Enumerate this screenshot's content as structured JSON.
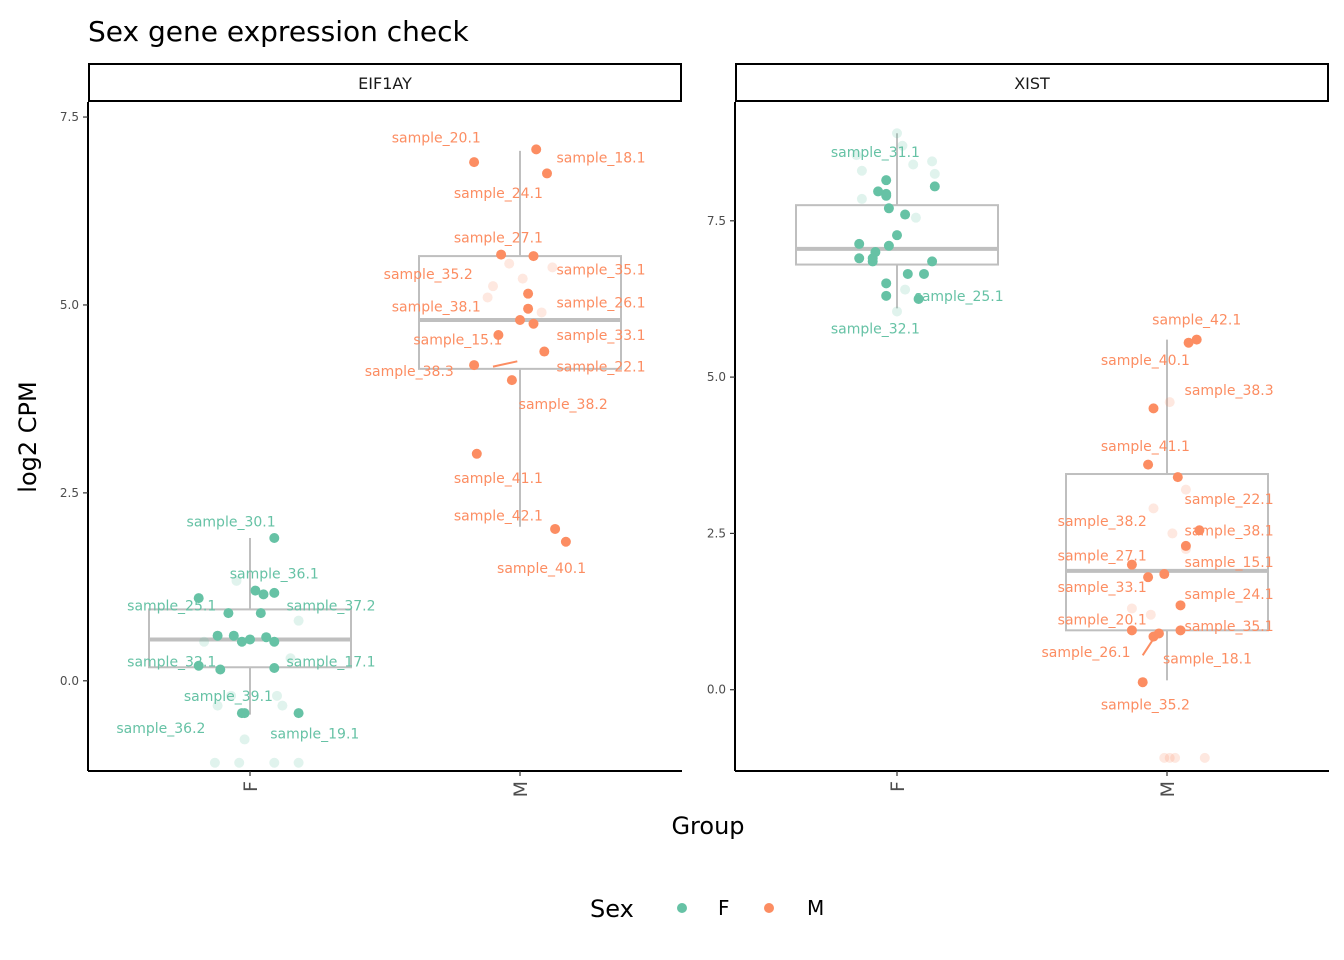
{
  "chart_data": {
    "type": "box-jitter",
    "title": "Sex gene expression check",
    "xlabel": "Group",
    "ylabel": "log2 CPM",
    "categories": [
      "F",
      "M"
    ],
    "legend": {
      "title": "Sex",
      "position": "bottom",
      "entries": [
        "F",
        "M"
      ]
    },
    "colors": {
      "F": "#66c2a5",
      "M": "#fc8d62",
      "box": "#bfbfbf"
    },
    "panels": [
      {
        "name": "EIF1AY",
        "ylim": [
          -1.2,
          7.7
        ],
        "yticks": [
          0.0,
          2.5,
          5.0,
          7.5
        ],
        "ytick_labels": [
          "0.0",
          "2.5",
          "5.0",
          "7.5"
        ],
        "box": {
          "F": {
            "q1": 0.18,
            "median": 0.55,
            "q3": 0.95,
            "low": -0.45,
            "high": 1.9
          },
          "M": {
            "q1": 4.15,
            "median": 4.8,
            "q3": 5.65,
            "low": 2.05,
            "high": 7.05
          }
        },
        "points": {
          "F": [
            {
              "x": 0.09,
              "y": 1.9,
              "a": 1
            },
            {
              "x": 0.02,
              "y": 1.2,
              "a": 1
            },
            {
              "x": 0.05,
              "y": 1.15,
              "a": 1
            },
            {
              "x": 0.09,
              "y": 1.17,
              "a": 1
            },
            {
              "x": -0.19,
              "y": 1.1,
              "a": 1
            },
            {
              "x": -0.08,
              "y": 0.9,
              "a": 1
            },
            {
              "x": 0.04,
              "y": 0.9,
              "a": 1
            },
            {
              "x": -0.12,
              "y": 0.6,
              "a": 1
            },
            {
              "x": -0.06,
              "y": 0.6,
              "a": 1
            },
            {
              "x": -0.03,
              "y": 0.52,
              "a": 1
            },
            {
              "x": 0.0,
              "y": 0.55,
              "a": 1
            },
            {
              "x": 0.06,
              "y": 0.58,
              "a": 1
            },
            {
              "x": 0.09,
              "y": 0.52,
              "a": 1
            },
            {
              "x": -0.19,
              "y": 0.2,
              "a": 1
            },
            {
              "x": -0.11,
              "y": 0.15,
              "a": 1
            },
            {
              "x": 0.09,
              "y": 0.17,
              "a": 1
            },
            {
              "x": -0.03,
              "y": -0.43,
              "a": 1
            },
            {
              "x": -0.02,
              "y": -0.43,
              "a": 1
            },
            {
              "x": 0.18,
              "y": -0.43,
              "a": 1
            },
            {
              "x": -0.05,
              "y": 1.33,
              "a": 0.2
            },
            {
              "x": 0.18,
              "y": 0.8,
              "a": 0.2
            },
            {
              "x": -0.17,
              "y": 0.52,
              "a": 0.2
            },
            {
              "x": 0.15,
              "y": 0.3,
              "a": 0.2
            },
            {
              "x": -0.07,
              "y": -0.2,
              "a": 0.2
            },
            {
              "x": 0.1,
              "y": -0.2,
              "a": 0.2
            },
            {
              "x": -0.12,
              "y": -0.33,
              "a": 0.2
            },
            {
              "x": 0.12,
              "y": -0.33,
              "a": 0.2
            },
            {
              "x": -0.02,
              "y": -0.78,
              "a": 0.2
            },
            {
              "x": -0.13,
              "y": -1.09,
              "a": 0.2
            },
            {
              "x": -0.04,
              "y": -1.09,
              "a": 0.2
            },
            {
              "x": 0.09,
              "y": -1.09,
              "a": 0.2
            },
            {
              "x": 0.18,
              "y": -1.09,
              "a": 0.2
            }
          ],
          "M": [
            {
              "x": 0.06,
              "y": 7.07,
              "a": 1
            },
            {
              "x": -0.17,
              "y": 6.9,
              "a": 1
            },
            {
              "x": 0.1,
              "y": 6.75,
              "a": 1
            },
            {
              "x": -0.07,
              "y": 5.67,
              "a": 1
            },
            {
              "x": 0.05,
              "y": 5.65,
              "a": 1
            },
            {
              "x": 0.03,
              "y": 5.15,
              "a": 1
            },
            {
              "x": 0.03,
              "y": 4.95,
              "a": 1
            },
            {
              "x": 0.0,
              "y": 4.8,
              "a": 1
            },
            {
              "x": 0.05,
              "y": 4.75,
              "a": 1
            },
            {
              "x": -0.08,
              "y": 4.6,
              "a": 1
            },
            {
              "x": 0.09,
              "y": 4.38,
              "a": 1
            },
            {
              "x": -0.17,
              "y": 4.2,
              "a": 1
            },
            {
              "x": -0.03,
              "y": 4.0,
              "a": 1
            },
            {
              "x": -0.16,
              "y": 3.02,
              "a": 1
            },
            {
              "x": 0.13,
              "y": 2.02,
              "a": 1
            },
            {
              "x": 0.17,
              "y": 1.85,
              "a": 1
            },
            {
              "x": -0.04,
              "y": 5.55,
              "a": 0.2
            },
            {
              "x": 0.12,
              "y": 5.5,
              "a": 0.2
            },
            {
              "x": 0.01,
              "y": 5.35,
              "a": 0.2
            },
            {
              "x": -0.1,
              "y": 5.25,
              "a": 0.2
            },
            {
              "x": -0.12,
              "y": 5.1,
              "a": 0.2
            },
            {
              "x": 0.08,
              "y": 4.9,
              "a": 0.2
            }
          ]
        },
        "labels": [
          {
            "text": "sample_30.1",
            "x": -0.07,
            "y": 2.12,
            "g": "F"
          },
          {
            "text": "sample_36.1",
            "x": 0.09,
            "y": 1.43,
            "g": "F"
          },
          {
            "text": "sample_25.1",
            "x": -0.29,
            "y": 1.0,
            "g": "F"
          },
          {
            "text": "sample_37.2",
            "x": 0.3,
            "y": 1.0,
            "g": "F"
          },
          {
            "text": "sample_32.1",
            "x": -0.29,
            "y": 0.26,
            "g": "F"
          },
          {
            "text": "sample_17.1",
            "x": 0.3,
            "y": 0.26,
            "g": "F"
          },
          {
            "text": "sample_39.1",
            "x": -0.08,
            "y": -0.2,
            "g": "F"
          },
          {
            "text": "sample_36.2",
            "x": -0.33,
            "y": -0.63,
            "g": "F"
          },
          {
            "text": "sample_19.1",
            "x": 0.24,
            "y": -0.7,
            "g": "F"
          },
          {
            "text": "sample_20.1",
            "x": -0.31,
            "y": 7.23,
            "g": "M"
          },
          {
            "text": "sample_18.1",
            "x": 0.3,
            "y": 6.96,
            "g": "M"
          },
          {
            "text": "sample_24.1",
            "x": -0.08,
            "y": 6.49,
            "g": "M"
          },
          {
            "text": "sample_27.1",
            "x": -0.08,
            "y": 5.9,
            "g": "M"
          },
          {
            "text": "sample_35.1",
            "x": 0.3,
            "y": 5.47,
            "g": "M"
          },
          {
            "text": "sample_35.2",
            "x": -0.34,
            "y": 5.41,
            "g": "M"
          },
          {
            "text": "sample_26.1",
            "x": 0.3,
            "y": 5.03,
            "g": "M"
          },
          {
            "text": "sample_38.1",
            "x": -0.31,
            "y": 4.98,
            "g": "M"
          },
          {
            "text": "sample_33.1",
            "x": 0.3,
            "y": 4.6,
            "g": "M"
          },
          {
            "text": "sample_15.1",
            "x": -0.23,
            "y": 4.54,
            "g": "M"
          },
          {
            "text": "sample_22.1",
            "x": 0.3,
            "y": 4.18,
            "g": "M"
          },
          {
            "text": "sample_38.3",
            "x": -0.41,
            "y": 4.12,
            "g": "M"
          },
          {
            "text": "sample_38.2",
            "x": 0.16,
            "y": 3.68,
            "g": "M"
          },
          {
            "text": "sample_41.1",
            "x": -0.08,
            "y": 2.7,
            "g": "M"
          },
          {
            "text": "sample_42.1",
            "x": -0.08,
            "y": 2.2,
            "g": "M"
          },
          {
            "text": "sample_40.1",
            "x": 0.08,
            "y": 1.5,
            "g": "M"
          }
        ],
        "segments": [
          {
            "x1": -0.1,
            "y1": 4.18,
            "x2": -0.01,
            "y2": 4.25,
            "g": "M"
          }
        ]
      },
      {
        "name": "XIST",
        "ylim": [
          -1.3,
          9.4
        ],
        "yticks": [
          0.0,
          2.5,
          5.0,
          7.5
        ],
        "ytick_labels": [
          "0.0",
          "2.5",
          "5.0",
          "7.5"
        ],
        "box": {
          "F": {
            "q1": 6.8,
            "median": 7.05,
            "q3": 7.75,
            "low": 6.1,
            "high": 8.9
          },
          "M": {
            "q1": 0.95,
            "median": 1.9,
            "q3": 3.45,
            "low": 0.15,
            "high": 5.6
          }
        },
        "points": {
          "F": [
            {
              "x": -0.04,
              "y": 8.15,
              "a": 1
            },
            {
              "x": -0.07,
              "y": 7.97,
              "a": 1
            },
            {
              "x": -0.04,
              "y": 7.93,
              "a": 1
            },
            {
              "x": 0.14,
              "y": 8.05,
              "a": 1
            },
            {
              "x": -0.04,
              "y": 7.9,
              "a": 1
            },
            {
              "x": -0.03,
              "y": 7.7,
              "a": 1
            },
            {
              "x": 0.03,
              "y": 7.6,
              "a": 1
            },
            {
              "x": 0.0,
              "y": 7.27,
              "a": 1
            },
            {
              "x": -0.14,
              "y": 7.13,
              "a": 1
            },
            {
              "x": -0.03,
              "y": 7.1,
              "a": 1
            },
            {
              "x": -0.08,
              "y": 7.0,
              "a": 1
            },
            {
              "x": -0.09,
              "y": 6.9,
              "a": 1
            },
            {
              "x": -0.14,
              "y": 6.9,
              "a": 1
            },
            {
              "x": -0.09,
              "y": 6.85,
              "a": 1
            },
            {
              "x": 0.13,
              "y": 6.85,
              "a": 1
            },
            {
              "x": 0.04,
              "y": 6.65,
              "a": 1
            },
            {
              "x": 0.1,
              "y": 6.65,
              "a": 1
            },
            {
              "x": -0.04,
              "y": 6.5,
              "a": 1
            },
            {
              "x": -0.04,
              "y": 6.3,
              "a": 1
            },
            {
              "x": 0.08,
              "y": 6.25,
              "a": 1
            },
            {
              "x": 0.0,
              "y": 8.9,
              "a": 0.2
            },
            {
              "x": 0.02,
              "y": 8.7,
              "a": 0.2
            },
            {
              "x": -0.15,
              "y": 8.55,
              "a": 0.2
            },
            {
              "x": 0.13,
              "y": 8.45,
              "a": 0.2
            },
            {
              "x": 0.06,
              "y": 8.4,
              "a": 0.2
            },
            {
              "x": -0.13,
              "y": 8.3,
              "a": 0.2
            },
            {
              "x": 0.14,
              "y": 8.25,
              "a": 0.2
            },
            {
              "x": -0.13,
              "y": 7.85,
              "a": 0.2
            },
            {
              "x": 0.07,
              "y": 7.55,
              "a": 0.2
            },
            {
              "x": 0.03,
              "y": 6.4,
              "a": 0.2
            },
            {
              "x": 0.0,
              "y": 6.05,
              "a": 0.2
            }
          ],
          "M": [
            {
              "x": 0.11,
              "y": 5.6,
              "a": 1
            },
            {
              "x": 0.08,
              "y": 5.55,
              "a": 1
            },
            {
              "x": -0.05,
              "y": 4.5,
              "a": 1
            },
            {
              "x": -0.07,
              "y": 3.6,
              "a": 1
            },
            {
              "x": 0.04,
              "y": 3.4,
              "a": 1
            },
            {
              "x": 0.12,
              "y": 2.55,
              "a": 1
            },
            {
              "x": 0.07,
              "y": 2.3,
              "a": 1
            },
            {
              "x": -0.13,
              "y": 2.0,
              "a": 1
            },
            {
              "x": -0.07,
              "y": 1.8,
              "a": 1
            },
            {
              "x": -0.01,
              "y": 1.85,
              "a": 1
            },
            {
              "x": 0.05,
              "y": 1.35,
              "a": 1
            },
            {
              "x": -0.13,
              "y": 0.95,
              "a": 1
            },
            {
              "x": -0.05,
              "y": 0.85,
              "a": 1
            },
            {
              "x": -0.03,
              "y": 0.9,
              "a": 1
            },
            {
              "x": 0.05,
              "y": 0.95,
              "a": 1
            },
            {
              "x": -0.09,
              "y": 0.12,
              "a": 1
            },
            {
              "x": 0.01,
              "y": 4.6,
              "a": 0.2
            },
            {
              "x": 0.07,
              "y": 3.2,
              "a": 0.2
            },
            {
              "x": -0.05,
              "y": 2.9,
              "a": 0.2
            },
            {
              "x": 0.02,
              "y": 2.5,
              "a": 0.2
            },
            {
              "x": 0.07,
              "y": 2.25,
              "a": 0.2
            },
            {
              "x": -0.13,
              "y": 1.3,
              "a": 0.2
            },
            {
              "x": -0.06,
              "y": 1.2,
              "a": 0.2
            },
            {
              "x": -0.01,
              "y": -1.09,
              "a": 0.2
            },
            {
              "x": 0.01,
              "y": -1.09,
              "a": 0.2
            },
            {
              "x": 0.03,
              "y": -1.09,
              "a": 0.2
            },
            {
              "x": 0.14,
              "y": -1.09,
              "a": 0.2
            }
          ]
        },
        "labels": [
          {
            "text": "sample_31.1",
            "x": -0.08,
            "y": 8.6,
            "g": "F"
          },
          {
            "text": "sample_25.1",
            "x": 0.23,
            "y": 6.3,
            "g": "F"
          },
          {
            "text": "sample_32.1",
            "x": -0.08,
            "y": 5.78,
            "g": "F"
          },
          {
            "text": "sample_42.1",
            "x": 0.11,
            "y": 5.92,
            "g": "M"
          },
          {
            "text": "sample_40.1",
            "x": -0.08,
            "y": 5.27,
            "g": "M"
          },
          {
            "text": "sample_38.3",
            "x": 0.23,
            "y": 4.79,
            "g": "M"
          },
          {
            "text": "sample_41.1",
            "x": -0.08,
            "y": 3.9,
            "g": "M"
          },
          {
            "text": "sample_22.1",
            "x": 0.23,
            "y": 3.05,
            "g": "M"
          },
          {
            "text": "sample_38.2",
            "x": -0.24,
            "y": 2.7,
            "g": "M"
          },
          {
            "text": "sample_38.1",
            "x": 0.23,
            "y": 2.55,
            "g": "M"
          },
          {
            "text": "sample_27.1",
            "x": -0.24,
            "y": 2.15,
            "g": "M"
          },
          {
            "text": "sample_15.1",
            "x": 0.23,
            "y": 2.04,
            "g": "M"
          },
          {
            "text": "sample_33.1",
            "x": -0.24,
            "y": 1.64,
            "g": "M"
          },
          {
            "text": "sample_24.1",
            "x": 0.23,
            "y": 1.53,
            "g": "M"
          },
          {
            "text": "sample_20.1",
            "x": -0.24,
            "y": 1.12,
            "g": "M"
          },
          {
            "text": "sample_35.1",
            "x": 0.23,
            "y": 1.02,
            "g": "M"
          },
          {
            "text": "sample_26.1",
            "x": -0.3,
            "y": 0.6,
            "g": "M"
          },
          {
            "text": "sample_18.1",
            "x": 0.15,
            "y": 0.5,
            "g": "M"
          },
          {
            "text": "sample_35.2",
            "x": -0.08,
            "y": -0.24,
            "g": "M"
          }
        ],
        "segments": [
          {
            "x1": -0.09,
            "y1": 0.55,
            "x2": -0.04,
            "y2": 0.88,
            "g": "M"
          }
        ]
      }
    ]
  }
}
